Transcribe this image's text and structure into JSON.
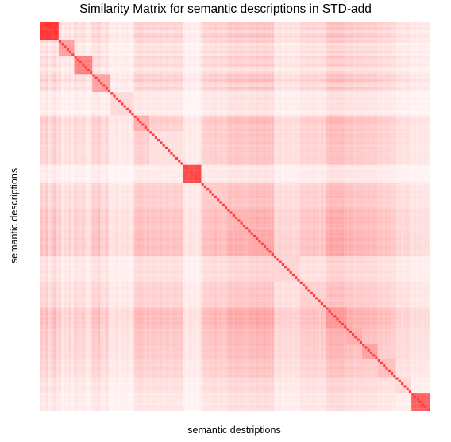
{
  "chart_data": {
    "type": "heatmap",
    "title": "Similarity Matrix for semantic descriptions in STD-add",
    "xlabel": "semantic destriptions",
    "ylabel": "semantic descriptions",
    "n": 150,
    "colors": {
      "low": "#ffffff",
      "high": "#ff2a2a"
    },
    "value_range": [
      0,
      1
    ],
    "blocks": [
      {
        "start": 0,
        "end": 7,
        "intra": 0.95
      },
      {
        "start": 7,
        "end": 13,
        "intra": 0.45
      },
      {
        "start": 13,
        "end": 20,
        "intra": 0.6
      },
      {
        "start": 20,
        "end": 27,
        "intra": 0.45
      },
      {
        "start": 27,
        "end": 36,
        "intra": 0.18
      },
      {
        "start": 36,
        "end": 42,
        "intra": 0.38
      },
      {
        "start": 42,
        "end": 55,
        "intra": 0.15
      },
      {
        "start": 55,
        "end": 62,
        "intra": 0.85
      },
      {
        "start": 62,
        "end": 72,
        "intra": 0.25
      },
      {
        "start": 72,
        "end": 80,
        "intra": 0.35
      },
      {
        "start": 80,
        "end": 90,
        "intra": 0.42
      },
      {
        "start": 90,
        "end": 100,
        "intra": 0.2
      },
      {
        "start": 100,
        "end": 110,
        "intra": 0.22
      },
      {
        "start": 110,
        "end": 118,
        "intra": 0.5
      },
      {
        "start": 118,
        "end": 124,
        "intra": 0.38
      },
      {
        "start": 124,
        "end": 130,
        "intra": 0.45
      },
      {
        "start": 130,
        "end": 137,
        "intra": 0.3
      },
      {
        "start": 137,
        "end": 143,
        "intra": 0.18
      },
      {
        "start": 143,
        "end": 150,
        "intra": 0.75
      }
    ],
    "row_profile": [
      0.22,
      0.15,
      0.28,
      0.1,
      0.2,
      0.3,
      0.12,
      0.18,
      0.05,
      0.1,
      0.08,
      0.15,
      0.06,
      0.2,
      0.12,
      0.1,
      0.18,
      0.08,
      0.05,
      0.12,
      0.25,
      0.18,
      0.3,
      0.15,
      0.1,
      0.22,
      0.08,
      0.04,
      0.05,
      0.08,
      0.04,
      0.06,
      0.05,
      0.07,
      0.03,
      0.05,
      0.22,
      0.28,
      0.3,
      0.25,
      0.2,
      0.26,
      0.2,
      0.24,
      0.22,
      0.2,
      0.25,
      0.18,
      0.22,
      0.2,
      0.19,
      0.23,
      0.21,
      0.2,
      0.22,
      0.05,
      0.03,
      0.06,
      0.04,
      0.05,
      0.03,
      0.06,
      0.2,
      0.25,
      0.22,
      0.28,
      0.24,
      0.3,
      0.22,
      0.26,
      0.2,
      0.24,
      0.35,
      0.38,
      0.32,
      0.4,
      0.36,
      0.38,
      0.34,
      0.3,
      0.38,
      0.42,
      0.36,
      0.45,
      0.4,
      0.38,
      0.44,
      0.4,
      0.36,
      0.42,
      0.12,
      0.1,
      0.14,
      0.08,
      0.12,
      0.1,
      0.13,
      0.09,
      0.11,
      0.1,
      0.2,
      0.18,
      0.22,
      0.2,
      0.18,
      0.24,
      0.2,
      0.16,
      0.22,
      0.18,
      0.4,
      0.45,
      0.5,
      0.42,
      0.48,
      0.44,
      0.46,
      0.4,
      0.3,
      0.35,
      0.32,
      0.28,
      0.34,
      0.3,
      0.32,
      0.28,
      0.3,
      0.26,
      0.3,
      0.28,
      0.2,
      0.22,
      0.18,
      0.24,
      0.2,
      0.16,
      0.2,
      0.1,
      0.12,
      0.08,
      0.1,
      0.12,
      0.09,
      0.05,
      0.08,
      0.06,
      0.07,
      0.05,
      0.08,
      0.06
    ]
  }
}
